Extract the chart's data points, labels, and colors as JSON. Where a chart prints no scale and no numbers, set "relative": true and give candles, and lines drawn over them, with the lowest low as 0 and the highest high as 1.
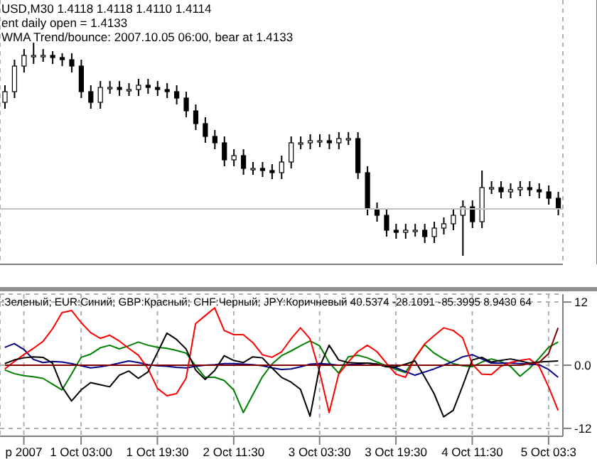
{
  "chart_data": [
    {
      "type": "candlestick",
      "title": "USD,M30  1.4118 1.4118 1.4110 1.4114",
      "annotations": [
        "ent daily open = 1.4133",
        "WMA Trend/bounce: 2007.10.05 06:00, bear at 1.4133"
      ],
      "relative": true,
      "grid": "x",
      "categories": [
        null,
        null,
        null,
        null,
        null,
        null,
        null,
        null,
        null,
        null,
        null,
        null,
        null,
        null,
        null,
        null,
        null,
        null,
        null,
        null,
        null,
        null,
        null,
        null,
        null,
        null,
        null,
        null,
        null,
        null,
        null,
        null,
        null,
        null,
        null,
        null,
        null,
        null,
        null,
        null,
        null,
        null,
        null,
        null,
        null,
        null,
        null,
        null,
        null,
        null,
        null,
        null,
        null,
        null,
        null,
        null,
        null,
        null,
        null
      ],
      "ohlc": [
        [
          0.72,
          0.8,
          0.69,
          0.77
        ],
        [
          0.77,
          0.92,
          0.74,
          0.89
        ],
        [
          0.89,
          0.97,
          0.86,
          0.94
        ],
        [
          0.94,
          1.0,
          0.9,
          0.94
        ],
        [
          0.94,
          0.97,
          0.91,
          0.94
        ],
        [
          0.94,
          0.96,
          0.9,
          0.93
        ],
        [
          0.93,
          0.95,
          0.89,
          0.92
        ],
        [
          0.92,
          0.95,
          0.86,
          0.89
        ],
        [
          0.89,
          0.92,
          0.74,
          0.77
        ],
        [
          0.77,
          0.8,
          0.69,
          0.72
        ],
        [
          0.72,
          0.82,
          0.69,
          0.79
        ],
        [
          0.79,
          0.82,
          0.76,
          0.79
        ],
        [
          0.79,
          0.82,
          0.75,
          0.78
        ],
        [
          0.78,
          0.81,
          0.75,
          0.78
        ],
        [
          0.78,
          0.83,
          0.75,
          0.8
        ],
        [
          0.8,
          0.83,
          0.76,
          0.79
        ],
        [
          0.79,
          0.82,
          0.75,
          0.78
        ],
        [
          0.78,
          0.81,
          0.74,
          0.77
        ],
        [
          0.77,
          0.8,
          0.71,
          0.74
        ],
        [
          0.74,
          0.77,
          0.65,
          0.68
        ],
        [
          0.68,
          0.71,
          0.59,
          0.62
        ],
        [
          0.62,
          0.65,
          0.53,
          0.56
        ],
        [
          0.56,
          0.59,
          0.5,
          0.53
        ],
        [
          0.53,
          0.56,
          0.42,
          0.45
        ],
        [
          0.45,
          0.5,
          0.42,
          0.47
        ],
        [
          0.47,
          0.5,
          0.38,
          0.41
        ],
        [
          0.41,
          0.44,
          0.38,
          0.41
        ],
        [
          0.41,
          0.44,
          0.37,
          0.4
        ],
        [
          0.4,
          0.43,
          0.36,
          0.39
        ],
        [
          0.39,
          0.47,
          0.36,
          0.44
        ],
        [
          0.44,
          0.56,
          0.41,
          0.53
        ],
        [
          0.53,
          0.56,
          0.5,
          0.53
        ],
        [
          0.53,
          0.57,
          0.5,
          0.54
        ],
        [
          0.54,
          0.57,
          0.51,
          0.54
        ],
        [
          0.54,
          0.57,
          0.5,
          0.53
        ],
        [
          0.53,
          0.58,
          0.5,
          0.55
        ],
        [
          0.55,
          0.58,
          0.52,
          0.55
        ],
        [
          0.55,
          0.58,
          0.36,
          0.39
        ],
        [
          0.39,
          0.42,
          0.19,
          0.22
        ],
        [
          0.22,
          0.25,
          0.16,
          0.19
        ],
        [
          0.19,
          0.22,
          0.09,
          0.12
        ],
        [
          0.12,
          0.15,
          0.08,
          0.11
        ],
        [
          0.11,
          0.15,
          0.08,
          0.12
        ],
        [
          0.12,
          0.15,
          0.09,
          0.12
        ],
        [
          0.12,
          0.15,
          0.06,
          0.09
        ],
        [
          0.09,
          0.16,
          0.06,
          0.13
        ],
        [
          0.13,
          0.18,
          0.1,
          0.15
        ],
        [
          0.15,
          0.22,
          0.12,
          0.19
        ],
        [
          0.19,
          0.26,
          0.0,
          0.23
        ],
        [
          0.23,
          0.26,
          0.13,
          0.16
        ],
        [
          0.16,
          0.4,
          0.13,
          0.32
        ],
        [
          0.32,
          0.35,
          0.29,
          0.32
        ],
        [
          0.32,
          0.35,
          0.27,
          0.3
        ],
        [
          0.3,
          0.34,
          0.27,
          0.31
        ],
        [
          0.31,
          0.35,
          0.28,
          0.32
        ],
        [
          0.32,
          0.35,
          0.28,
          0.31
        ],
        [
          0.31,
          0.34,
          0.27,
          0.3
        ],
        [
          0.3,
          0.33,
          0.24,
          0.27
        ],
        [
          0.27,
          0.3,
          0.19,
          0.22
        ]
      ],
      "ref_lines": [
        {
          "axis": "y",
          "value": 0.22,
          "color": "#c0c0c0"
        }
      ]
    },
    {
      "type": "line",
      "subtitle": ":Зеленый; EUR:Синий; GBP:Красный; CHF:Черный; JPY:Коричневый 40.5374 -28.1091 -85.3995 8.9430 64",
      "grid": true,
      "marker": "none",
      "line_style": "solid",
      "ylim": [
        -13.5,
        13.5
      ],
      "yticks": [
        12,
        {
          "value": 0,
          "label": "0.0"
        },
        -12
      ],
      "categories": [
        null,
        null,
        "p 2007",
        null,
        null,
        null,
        null,
        null,
        "1 Oct 03:00",
        null,
        null,
        null,
        null,
        null,
        null,
        null,
        "1 Oct 19:30",
        null,
        null,
        null,
        null,
        null,
        null,
        null,
        "2 Oct 11:30",
        null,
        null,
        null,
        null,
        null,
        null,
        null,
        null,
        "3 Oct 03:30",
        null,
        null,
        null,
        null,
        null,
        null,
        null,
        "3 Oct 19:30",
        null,
        null,
        null,
        null,
        null,
        null,
        null,
        "4 Oct 11:30",
        null,
        null,
        null,
        null,
        null,
        null,
        null,
        "5 Oct 03:3",
        null
      ],
      "series": [
        {
          "color": "#008000",
          "values": [
            -0.9,
            -1.6,
            -2.0,
            -2.2,
            -2.5,
            -3.6,
            -4.7,
            -1.7,
            1.5,
            2.1,
            3.3,
            3.8,
            3.1,
            3.7,
            4.4,
            3.8,
            3.4,
            3.2,
            2.8,
            2.3,
            -0.1,
            -2.3,
            -2.3,
            -2.9,
            -4.7,
            -9,
            -5.6,
            -2.2,
            0.2,
            1.8,
            2.7,
            3.7,
            4.6,
            3.7,
            0.5,
            -1.5,
            1.6,
            1.9,
            1.4,
            0.6,
            -0.1,
            -0.8,
            -1.4,
            1.4,
            3.9,
            2.3,
            1.2,
            0.3,
            -0.1,
            -0.3,
            0.6,
            1.2,
            0.7,
            -0.2,
            -2.1,
            -0.6,
            1.3,
            3.4,
            4.4
          ]
        },
        {
          "color": "#00008b",
          "values": [
            3.4,
            4.1,
            3.0,
            1.1,
            0.5,
            0.7,
            0.6,
            0.3,
            -0.1,
            -0.5,
            -0.3,
            0,
            0.4,
            0.8,
            0.5,
            0.1,
            -0.1,
            -0.2,
            -0.4,
            -0.5,
            -0.2,
            0,
            0.1,
            0.3,
            0.3,
            0.2,
            0.1,
            -0.1,
            -0.5,
            -0.8,
            -0.7,
            -0.3,
            0.2,
            0.3,
            0.2,
            0,
            0.1,
            0.2,
            0.4,
            0.2,
            -0.2,
            -0.5,
            -1.2,
            -1.9,
            -1.3,
            -0.7,
            0,
            0.7,
            1.6,
            2.0,
            1.2,
            0.4,
            0.4,
            0.4,
            0.3,
            0.2,
            0.1,
            -0.8,
            -2.3
          ]
        },
        {
          "color": "#ff0000",
          "values": [
            -0.7,
            0.7,
            2.0,
            3.2,
            4.5,
            6.9,
            10.0,
            10.4,
            8.1,
            6.2,
            5.1,
            5.7,
            4.6,
            3.2,
            1.9,
            -0.6,
            -4.4,
            -5.8,
            -5.4,
            -2.5,
            7.9,
            9.4,
            10.9,
            6.6,
            5.8,
            5.8,
            4.3,
            2.0,
            1.5,
            2.5,
            5.0,
            7.1,
            5.0,
            -1.3,
            -9.0,
            -1.7,
            0.6,
            2.6,
            3.8,
            2.6,
            0.4,
            -1.7,
            -2.3,
            1.4,
            4.0,
            5.6,
            7.1,
            6.6,
            5.2,
            0.2,
            -1.7,
            -1.8,
            -0.2,
            0.5,
            0.9,
            1.2,
            -0.2,
            -4.1,
            -8.6
          ]
        },
        {
          "color": "#000000",
          "values": [
            0.3,
            1.0,
            1.4,
            1.6,
            1.5,
            0.4,
            -4.1,
            -6.8,
            -4.7,
            -3.3,
            -3.7,
            -4.1,
            -1.9,
            -1.1,
            -2.5,
            -1.3,
            2.4,
            6.1,
            4.9,
            3.1,
            -0.9,
            -2.7,
            -1.0,
            1.8,
            0.9,
            0.5,
            1.6,
            1.4,
            -0.5,
            -2.3,
            -3.2,
            -4.6,
            -9.7,
            -0.3,
            3.8,
            1.0,
            0.5,
            0.4,
            0.4,
            0.2,
            -0.3,
            -0.3,
            0.2,
            0.8,
            -2.2,
            -5.4,
            -9.8,
            -8.6,
            -3.9,
            1.0,
            1.5,
            0.6,
            0.9,
            1.2,
            0.8,
            0.4,
            0.6,
            0.7,
            0.8
          ]
        },
        {
          "color": "#800000",
          "values": [
            0,
            0,
            0,
            0,
            0,
            0,
            0,
            0,
            0,
            0,
            0,
            0,
            0,
            0,
            0,
            0,
            0,
            0,
            0,
            0,
            0,
            0,
            0,
            0,
            0,
            0,
            0,
            0,
            0,
            0,
            0,
            0,
            0,
            0,
            0,
            0,
            0,
            0,
            0,
            0,
            0,
            0,
            0,
            0,
            0,
            0,
            0,
            0,
            0,
            0,
            0,
            0,
            0,
            0,
            0,
            0.3,
            0.5,
            2.2,
            7.1
          ]
        }
      ]
    }
  ]
}
